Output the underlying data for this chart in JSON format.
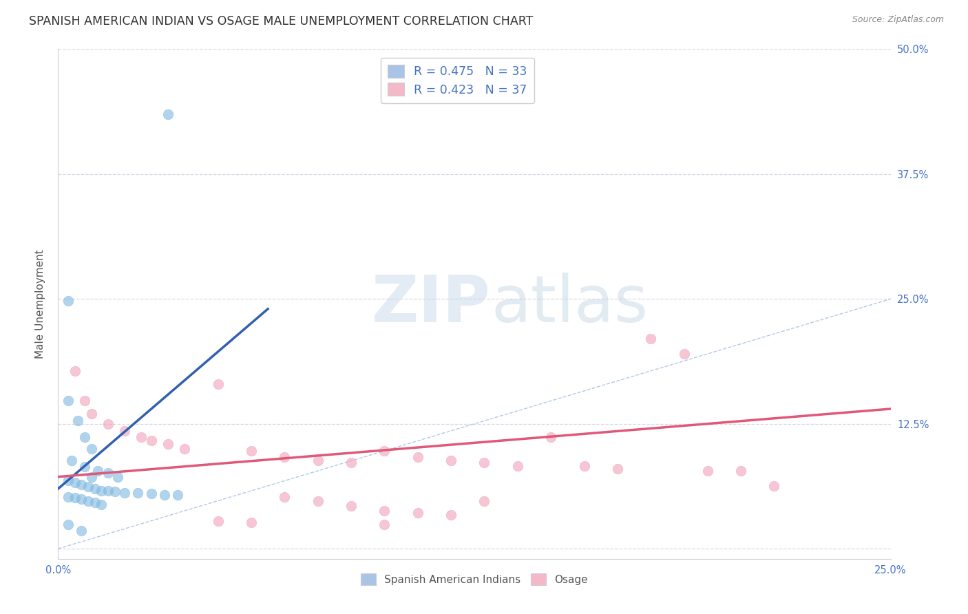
{
  "title": "SPANISH AMERICAN INDIAN VS OSAGE MALE UNEMPLOYMENT CORRELATION CHART",
  "source": "Source: ZipAtlas.com",
  "ylabel": "Male Unemployment",
  "xlim": [
    0.0,
    0.25
  ],
  "ylim": [
    -0.01,
    0.5
  ],
  "xticks": [
    0.0,
    0.05,
    0.1,
    0.15,
    0.2,
    0.25
  ],
  "xticklabels": [
    "0.0%",
    "",
    "",
    "",
    "",
    "25.0%"
  ],
  "yticks": [
    0.0,
    0.125,
    0.25,
    0.375,
    0.5
  ],
  "yticklabels_right": [
    "",
    "12.5%",
    "25.0%",
    "37.5%",
    "50.0%"
  ],
  "legend_entries": [
    {
      "label": "R = 0.475   N = 33",
      "color": "#aac4e8"
    },
    {
      "label": "R = 0.423   N = 37",
      "color": "#f4b8c8"
    }
  ],
  "legend_bottom": [
    "Spanish American Indians",
    "Osage"
  ],
  "blue_color": "#7db8e0",
  "pink_color": "#f0a0b8",
  "blue_scatter": [
    [
      0.003,
      0.248
    ],
    [
      0.033,
      0.435
    ],
    [
      0.003,
      0.148
    ],
    [
      0.006,
      0.128
    ],
    [
      0.008,
      0.112
    ],
    [
      0.01,
      0.1
    ],
    [
      0.004,
      0.088
    ],
    [
      0.008,
      0.082
    ],
    [
      0.012,
      0.078
    ],
    [
      0.015,
      0.076
    ],
    [
      0.01,
      0.072
    ],
    [
      0.018,
      0.072
    ],
    [
      0.003,
      0.068
    ],
    [
      0.005,
      0.066
    ],
    [
      0.007,
      0.064
    ],
    [
      0.009,
      0.062
    ],
    [
      0.011,
      0.06
    ],
    [
      0.013,
      0.058
    ],
    [
      0.015,
      0.058
    ],
    [
      0.017,
      0.057
    ],
    [
      0.02,
      0.056
    ],
    [
      0.024,
      0.056
    ],
    [
      0.028,
      0.055
    ],
    [
      0.032,
      0.054
    ],
    [
      0.036,
      0.054
    ],
    [
      0.003,
      0.052
    ],
    [
      0.005,
      0.051
    ],
    [
      0.007,
      0.05
    ],
    [
      0.009,
      0.048
    ],
    [
      0.011,
      0.046
    ],
    [
      0.013,
      0.044
    ],
    [
      0.003,
      0.024
    ],
    [
      0.007,
      0.018
    ]
  ],
  "pink_scatter": [
    [
      0.005,
      0.178
    ],
    [
      0.008,
      0.148
    ],
    [
      0.01,
      0.135
    ],
    [
      0.015,
      0.125
    ],
    [
      0.02,
      0.118
    ],
    [
      0.025,
      0.112
    ],
    [
      0.028,
      0.108
    ],
    [
      0.033,
      0.105
    ],
    [
      0.038,
      0.1
    ],
    [
      0.048,
      0.165
    ],
    [
      0.058,
      0.098
    ],
    [
      0.068,
      0.092
    ],
    [
      0.078,
      0.088
    ],
    [
      0.088,
      0.086
    ],
    [
      0.098,
      0.098
    ],
    [
      0.108,
      0.092
    ],
    [
      0.118,
      0.088
    ],
    [
      0.128,
      0.086
    ],
    [
      0.138,
      0.083
    ],
    [
      0.148,
      0.112
    ],
    [
      0.158,
      0.083
    ],
    [
      0.168,
      0.08
    ],
    [
      0.178,
      0.21
    ],
    [
      0.188,
      0.195
    ],
    [
      0.195,
      0.078
    ],
    [
      0.205,
      0.078
    ],
    [
      0.068,
      0.052
    ],
    [
      0.078,
      0.048
    ],
    [
      0.088,
      0.043
    ],
    [
      0.098,
      0.038
    ],
    [
      0.108,
      0.036
    ],
    [
      0.118,
      0.034
    ],
    [
      0.048,
      0.028
    ],
    [
      0.058,
      0.026
    ],
    [
      0.128,
      0.048
    ],
    [
      0.215,
      0.063
    ],
    [
      0.098,
      0.024
    ]
  ],
  "blue_line": [
    [
      0.0,
      0.06
    ],
    [
      0.063,
      0.24
    ]
  ],
  "pink_line": [
    [
      0.0,
      0.072
    ],
    [
      0.25,
      0.14
    ]
  ],
  "diagonal_line_color": "#b0c8e8",
  "diagonal_line_style": "--",
  "watermark_zip": "ZIP",
  "watermark_atlas": "atlas",
  "background_color": "#ffffff",
  "grid_color": "#d8d8e8",
  "title_fontsize": 12.5,
  "label_fontsize": 11,
  "tick_color_blue": "#4472c4",
  "tick_color_x": "#4472c4"
}
